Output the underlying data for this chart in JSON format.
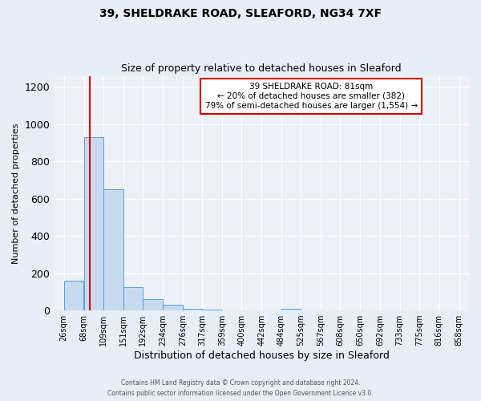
{
  "title1": "39, SHELDRAKE ROAD, SLEAFORD, NG34 7XF",
  "title2": "Size of property relative to detached houses in Sleaford",
  "xlabel": "Distribution of detached houses by size in Sleaford",
  "ylabel": "Number of detached properties",
  "bin_edges": [
    26,
    68,
    109,
    151,
    192,
    234,
    276,
    317,
    359,
    400,
    442,
    484,
    525,
    567,
    608,
    650,
    692,
    733,
    775,
    816,
    858
  ],
  "bar_heights": [
    160,
    930,
    650,
    125,
    60,
    30,
    10,
    5,
    0,
    0,
    0,
    10,
    0,
    0,
    0,
    0,
    0,
    0,
    0,
    0
  ],
  "bar_color": "#c8daf0",
  "bar_edgecolor": "#5a9fd4",
  "vline_x": 81,
  "vline_color": "#cc0000",
  "ylim": [
    0,
    1260
  ],
  "yticks": [
    0,
    200,
    400,
    600,
    800,
    1000,
    1200
  ],
  "annotation_title": "39 SHELDRAKE ROAD: 81sqm",
  "annotation_line1": "← 20% of detached houses are smaller (382)",
  "annotation_line2": "79% of semi-detached houses are larger (1,554) →",
  "annotation_box_facecolor": "#ffffff",
  "annotation_box_edgecolor": "#cc0000",
  "footer_line1": "Contains HM Land Registry data © Crown copyright and database right 2024.",
  "footer_line2": "Contains public sector information licensed under the Open Government Licence v3.0.",
  "background_color": "#e8eef5",
  "plot_background_color": "#edf1f7",
  "title_fontsize": 10,
  "subtitle_fontsize": 9,
  "ylabel_fontsize": 8,
  "xlabel_fontsize": 9,
  "ytick_fontsize": 9,
  "xtick_fontsize": 7
}
